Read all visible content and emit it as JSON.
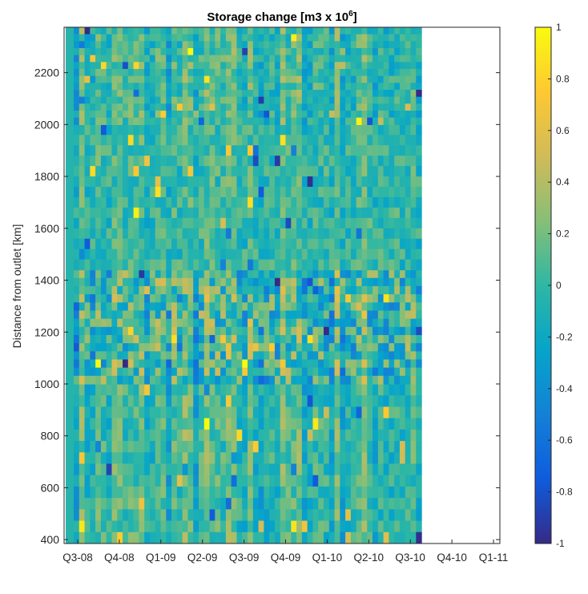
{
  "chart_data": {
    "type": "heatmap",
    "title": "Storage change [m3 x 10",
    "title_superscript": "6",
    "title_suffix": "]",
    "ylabel": "Distance from outlet [km]",
    "xlabel": "",
    "x_tick_labels": [
      "Q3-08",
      "Q4-08",
      "Q1-09",
      "Q2-09",
      "Q3-09",
      "Q4-09",
      "Q1-10",
      "Q2-10",
      "Q3-10",
      "Q4-10",
      "Q1-11"
    ],
    "y_ticks": [
      400,
      600,
      800,
      1000,
      1200,
      1400,
      1600,
      1800,
      2000,
      2200
    ],
    "ylim": [
      385,
      2375
    ],
    "colorbar": {
      "ticks": [
        1,
        0.8,
        0.6,
        0.4,
        0.2,
        0,
        -0.2,
        -0.4,
        -0.6,
        -0.8,
        -1
      ],
      "range": [
        -1,
        1
      ],
      "colormap": "parula",
      "colors": [
        "#352a87",
        "#0f5cdd",
        "#1481d6",
        "#06a4ca",
        "#2eb7a4",
        "#87bf77",
        "#d1bb59",
        "#fec832",
        "#f9fb0e"
      ]
    },
    "data_extent_fraction_of_x": 0.82,
    "bands_km": [
      385,
      1000,
      1440,
      2000,
      2375
    ],
    "grid": false
  }
}
